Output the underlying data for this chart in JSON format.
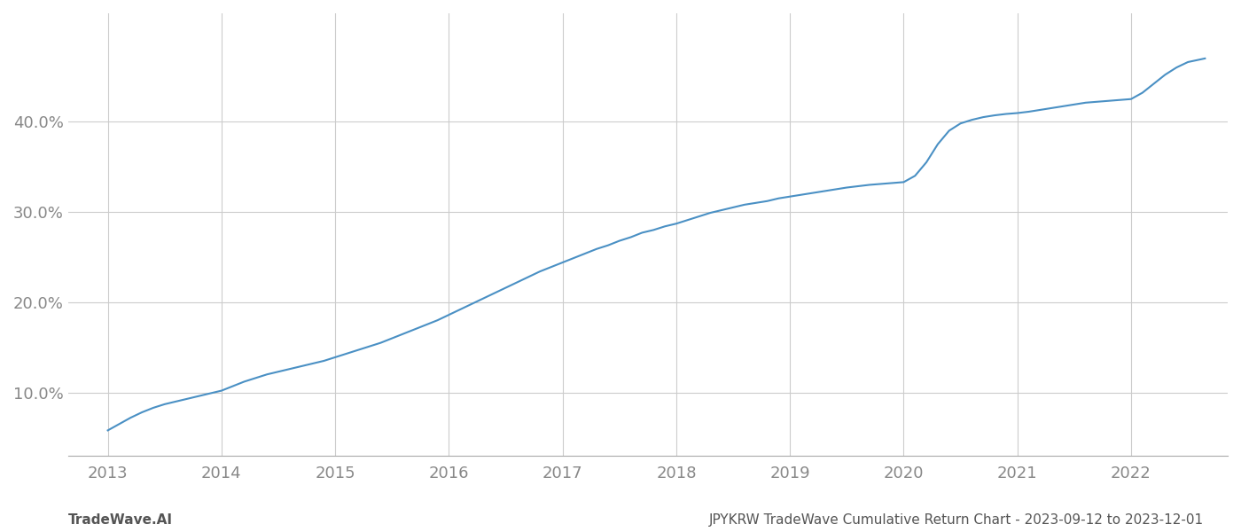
{
  "title": "JPYKRW TradeWave Cumulative Return Chart - 2023-09-12 to 2023-12-01",
  "watermark": "TradeWave.AI",
  "line_color": "#4a90c4",
  "background_color": "#ffffff",
  "grid_color": "#cccccc",
  "x_years": [
    2013,
    2014,
    2015,
    2016,
    2017,
    2018,
    2019,
    2020,
    2021,
    2022
  ],
  "x_data": [
    2013.0,
    2013.1,
    2013.2,
    2013.3,
    2013.4,
    2013.5,
    2013.6,
    2013.7,
    2013.8,
    2013.9,
    2014.0,
    2014.1,
    2014.2,
    2014.3,
    2014.4,
    2014.5,
    2014.6,
    2014.7,
    2014.8,
    2014.9,
    2015.0,
    2015.1,
    2015.2,
    2015.3,
    2015.4,
    2015.5,
    2015.6,
    2015.7,
    2015.8,
    2015.9,
    2016.0,
    2016.1,
    2016.2,
    2016.3,
    2016.4,
    2016.5,
    2016.6,
    2016.7,
    2016.8,
    2016.9,
    2017.0,
    2017.1,
    2017.2,
    2017.3,
    2017.4,
    2017.5,
    2017.6,
    2017.7,
    2017.8,
    2017.9,
    2018.0,
    2018.1,
    2018.2,
    2018.3,
    2018.4,
    2018.5,
    2018.6,
    2018.7,
    2018.8,
    2018.9,
    2019.0,
    2019.1,
    2019.2,
    2019.3,
    2019.4,
    2019.5,
    2019.6,
    2019.7,
    2019.8,
    2019.9,
    2020.0,
    2020.1,
    2020.2,
    2020.3,
    2020.4,
    2020.5,
    2020.6,
    2020.7,
    2020.8,
    2020.9,
    2021.0,
    2021.1,
    2021.2,
    2021.3,
    2021.4,
    2021.5,
    2021.6,
    2021.7,
    2021.8,
    2021.9,
    2022.0,
    2022.1,
    2022.2,
    2022.3,
    2022.4,
    2022.5,
    2022.65
  ],
  "y_data": [
    5.8,
    6.5,
    7.2,
    7.8,
    8.3,
    8.7,
    9.0,
    9.3,
    9.6,
    9.9,
    10.2,
    10.7,
    11.2,
    11.6,
    12.0,
    12.3,
    12.6,
    12.9,
    13.2,
    13.5,
    13.9,
    14.3,
    14.7,
    15.1,
    15.5,
    16.0,
    16.5,
    17.0,
    17.5,
    18.0,
    18.6,
    19.2,
    19.8,
    20.4,
    21.0,
    21.6,
    22.2,
    22.8,
    23.4,
    23.9,
    24.4,
    24.9,
    25.4,
    25.9,
    26.3,
    26.8,
    27.2,
    27.7,
    28.0,
    28.4,
    28.7,
    29.1,
    29.5,
    29.9,
    30.2,
    30.5,
    30.8,
    31.0,
    31.2,
    31.5,
    31.7,
    31.9,
    32.1,
    32.3,
    32.5,
    32.7,
    32.85,
    33.0,
    33.1,
    33.2,
    33.3,
    34.0,
    35.5,
    37.5,
    39.0,
    39.8,
    40.2,
    40.5,
    40.7,
    40.85,
    40.95,
    41.1,
    41.3,
    41.5,
    41.7,
    41.9,
    42.1,
    42.2,
    42.3,
    42.4,
    42.5,
    43.2,
    44.2,
    45.2,
    46.0,
    46.6,
    47.0
  ],
  "yticks": [
    10.0,
    20.0,
    30.0,
    40.0
  ],
  "ylim": [
    3.0,
    52.0
  ],
  "xlim": [
    2012.65,
    2022.85
  ],
  "tick_label_color": "#888888",
  "title_color": "#555555",
  "watermark_color": "#555555",
  "title_fontsize": 11,
  "watermark_fontsize": 11,
  "tick_fontsize": 13,
  "line_width": 1.5
}
